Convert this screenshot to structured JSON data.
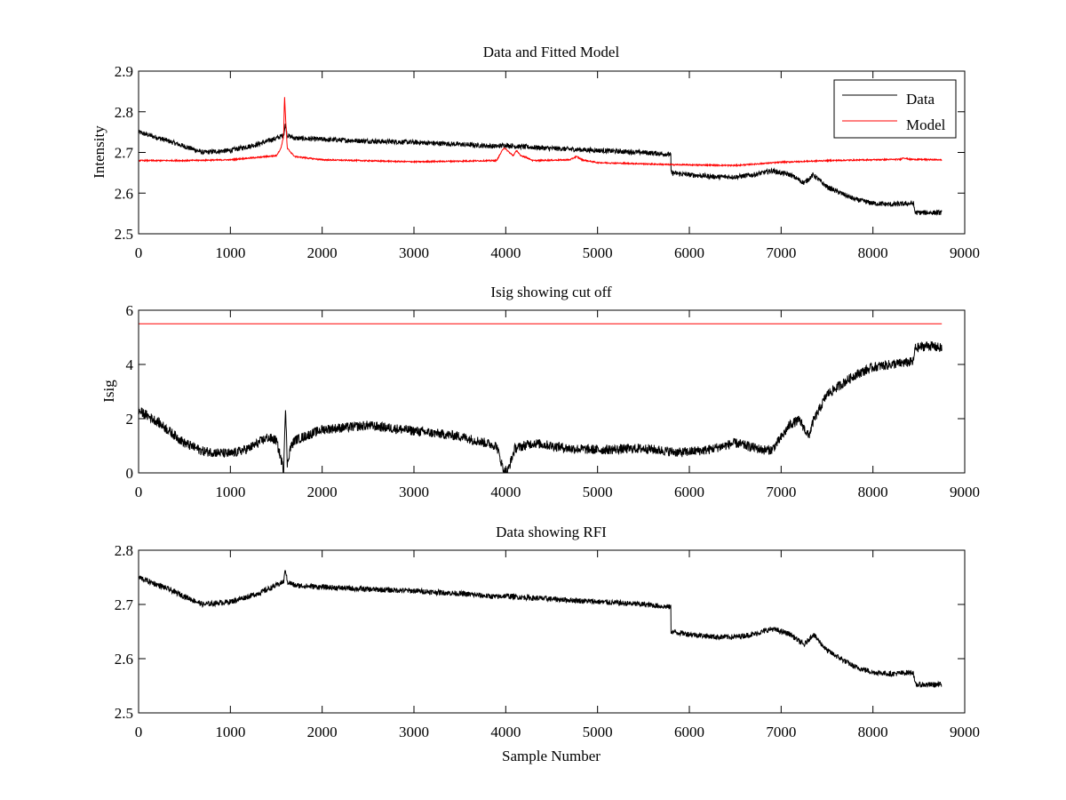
{
  "figure": {
    "background": "#ffffff"
  },
  "chart_data": [
    {
      "type": "line",
      "title": "Data and Fitted Model",
      "xlabel": "",
      "ylabel": "Intensity",
      "xlim": [
        0,
        9000
      ],
      "ylim": [
        2.5,
        2.9
      ],
      "xticks": [
        0,
        1000,
        2000,
        3000,
        4000,
        5000,
        6000,
        7000,
        8000,
        9000
      ],
      "yticks": [
        2.5,
        2.6,
        2.7,
        2.8,
        2.9
      ],
      "xtick_labels": [
        "0",
        "1000",
        "2000",
        "3000",
        "4000",
        "5000",
        "6000",
        "7000",
        "8000",
        "9000"
      ],
      "ytick_labels": [
        "2.5",
        "2.6",
        "2.7",
        "2.8",
        "2.9"
      ],
      "grid": false,
      "legend": {
        "placement": "top-right",
        "entries": [
          "Data",
          "Model"
        ]
      },
      "series": [
        {
          "name": "Data",
          "color": "#000000",
          "noise": 0.006,
          "x": [
            0,
            300,
            700,
            1000,
            1300,
            1500,
            1580,
            1600,
            1620,
            1700,
            2000,
            2500,
            3000,
            3500,
            3900,
            4000,
            4100,
            4500,
            5000,
            5500,
            5800,
            5801,
            6000,
            6300,
            6500,
            6700,
            6900,
            7100,
            7250,
            7350,
            7500,
            7800,
            8000,
            8200,
            8440,
            8460,
            8600,
            8750
          ],
          "y": [
            2.75,
            2.73,
            2.7,
            2.705,
            2.72,
            2.735,
            2.742,
            2.77,
            2.742,
            2.735,
            2.732,
            2.728,
            2.725,
            2.72,
            2.715,
            2.718,
            2.715,
            2.71,
            2.705,
            2.7,
            2.695,
            2.65,
            2.645,
            2.64,
            2.64,
            2.645,
            2.655,
            2.645,
            2.625,
            2.645,
            2.615,
            2.585,
            2.575,
            2.572,
            2.575,
            2.552,
            2.552,
            2.552
          ]
        },
        {
          "name": "Model",
          "color": "#ff0000",
          "noise": 0.0015,
          "x": [
            0,
            500,
            1000,
            1300,
            1500,
            1550,
            1580,
            1590,
            1600,
            1620,
            1700,
            2000,
            3000,
            3900,
            3980,
            4030,
            4080,
            4120,
            4160,
            4200,
            4300,
            4700,
            4770,
            4830,
            5000,
            5500,
            5800,
            6500,
            7000,
            7500,
            8000,
            8300,
            8330,
            8400,
            8750
          ],
          "y": [
            2.68,
            2.68,
            2.682,
            2.688,
            2.692,
            2.71,
            2.74,
            2.84,
            2.79,
            2.71,
            2.69,
            2.682,
            2.677,
            2.68,
            2.712,
            2.702,
            2.692,
            2.705,
            2.692,
            2.69,
            2.68,
            2.682,
            2.69,
            2.682,
            2.675,
            2.672,
            2.67,
            2.668,
            2.676,
            2.68,
            2.682,
            2.683,
            2.687,
            2.683,
            2.682
          ]
        }
      ]
    },
    {
      "type": "line",
      "title": "Isig showing cut off",
      "xlabel": "",
      "ylabel": "Isig",
      "xlim": [
        0,
        9000
      ],
      "ylim": [
        0,
        6
      ],
      "xticks": [
        0,
        1000,
        2000,
        3000,
        4000,
        5000,
        6000,
        7000,
        8000,
        9000
      ],
      "yticks": [
        0,
        2,
        4,
        6
      ],
      "xtick_labels": [
        "0",
        "1000",
        "2000",
        "3000",
        "4000",
        "5000",
        "6000",
        "7000",
        "8000",
        "9000"
      ],
      "ytick_labels": [
        "0",
        "2",
        "4",
        "6"
      ],
      "grid": false,
      "series": [
        {
          "color": "#000000",
          "noise": 0.18,
          "x": [
            0,
            200,
            500,
            700,
            1000,
            1200,
            1400,
            1500,
            1560,
            1580,
            1600,
            1620,
            1650,
            1700,
            2000,
            2500,
            3000,
            3500,
            3900,
            3980,
            4020,
            4100,
            4300,
            4700,
            5000,
            5500,
            5900,
            6200,
            6500,
            6800,
            6900,
            7000,
            7100,
            7200,
            7300,
            7350,
            7500,
            7800,
            8000,
            8200,
            8440,
            8460,
            8600,
            8750
          ],
          "y": [
            2.3,
            1.9,
            1.1,
            0.8,
            0.7,
            0.9,
            1.3,
            1.2,
            0.4,
            0.1,
            2.5,
            0.3,
            0.9,
            1.2,
            1.6,
            1.75,
            1.55,
            1.35,
            1.0,
            0.05,
            0.05,
            0.9,
            1.1,
            0.9,
            0.85,
            0.9,
            0.75,
            0.85,
            1.1,
            0.85,
            0.85,
            1.3,
            1.8,
            1.95,
            1.35,
            1.9,
            2.9,
            3.6,
            3.9,
            4.0,
            4.1,
            4.6,
            4.7,
            4.6
          ]
        },
        {
          "color": "#ff0000",
          "noise": 0,
          "x": [
            0,
            8750
          ],
          "y": [
            5.5,
            5.5
          ]
        }
      ]
    },
    {
      "type": "line",
      "title": "Data showing RFI",
      "xlabel": "Sample Number",
      "ylabel": "",
      "xlim": [
        0,
        9000
      ],
      "ylim": [
        2.5,
        2.8
      ],
      "xticks": [
        0,
        1000,
        2000,
        3000,
        4000,
        5000,
        6000,
        7000,
        8000,
        9000
      ],
      "yticks": [
        2.5,
        2.6,
        2.7,
        2.8
      ],
      "xtick_labels": [
        "0",
        "1000",
        "2000",
        "3000",
        "4000",
        "5000",
        "6000",
        "7000",
        "8000",
        "9000"
      ],
      "ytick_labels": [
        "2.5",
        "2.6",
        "2.7",
        "2.8"
      ],
      "grid": false,
      "series": [
        {
          "color": "#000000",
          "noise": 0.005,
          "x": [
            0,
            300,
            700,
            1000,
            1300,
            1500,
            1580,
            1600,
            1620,
            1700,
            2000,
            2500,
            3000,
            3500,
            3900,
            4000,
            4100,
            4500,
            5000,
            5500,
            5800,
            5801,
            6000,
            6300,
            6500,
            6700,
            6900,
            7100,
            7250,
            7350,
            7500,
            7800,
            8000,
            8200,
            8440,
            8460,
            8600,
            8750
          ],
          "y": [
            2.75,
            2.73,
            2.7,
            2.705,
            2.72,
            2.735,
            2.742,
            2.765,
            2.742,
            2.735,
            2.732,
            2.728,
            2.725,
            2.72,
            2.714,
            2.716,
            2.714,
            2.71,
            2.705,
            2.7,
            2.695,
            2.65,
            2.645,
            2.64,
            2.64,
            2.645,
            2.655,
            2.645,
            2.625,
            2.645,
            2.615,
            2.585,
            2.575,
            2.572,
            2.575,
            2.552,
            2.552,
            2.552
          ]
        }
      ]
    }
  ]
}
